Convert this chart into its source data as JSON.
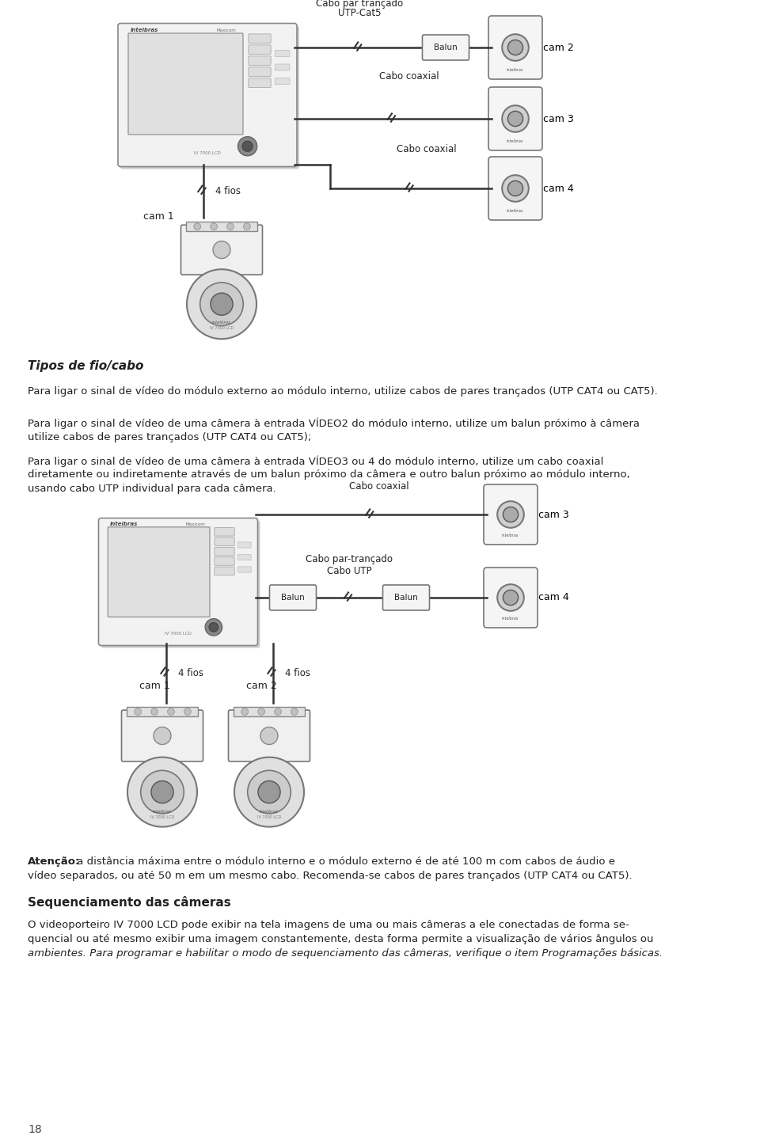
{
  "bg_color": "#ffffff",
  "title_italic": "Tipos de fio/cabo",
  "para1": "Para ligar o sinal de vídeo do módulo externo ao módulo interno, utilize cabos de pares trançados (UTP CAT4 ou CAT5).",
  "para2a": "Para ligar o sinal de vídeo de uma câmera à entrada VÍDEO2 do módulo interno, utilize um balun próximo à câmera",
  "para2b": "utilize cabos de pares trançados (UTP CAT4 ou CAT5);",
  "para3a": "Para ligar o sinal de vídeo de uma câmera à entrada VÍDEO3 ou 4 do módulo interno, utilize um cabo coaxial",
  "para3b": "diretamente ou indiretamente através de um balun próximo da câmera e outro balun próximo ao módulo interno,",
  "para3c": "usando cabo UTP individual para cada câmera.",
  "atencao_bold": "Atenção:",
  "atencao_rest": " a distância máxima entre o módulo interno e o módulo externo é de até 100 m com cabos de áudio e",
  "atencao_line2": "vídeo separados, ou até 50 m em um mesmo cabo. Recomenda-se cabos de pares trançados (UTP CAT4 ou CAT5).",
  "seq_title": "Sequenciamento das câmeras",
  "seq_para1": "O videoporteiro IV 7000 LCD pode exibir na tela imagens de uma ou mais câmeras a ele conectadas de forma se-",
  "seq_para2": "quencial ou até mesmo exibir uma imagem constantemente, desta forma permite a visualização de vários ângulos ou",
  "seq_para3": "ambientes. Para programar e habilitar o modo de sequenciamento das câmeras, verifique o item Programações básicas.",
  "page_num": "18",
  "d1_cable1": "Cabo par trançado",
  "d1_cable1b": "UTP-Cat5",
  "d1_cable2": "Cabo coaxial",
  "d1_cable3": "Cabo coaxial",
  "d1_fios": "4 fios",
  "d1_cam1": "cam 1",
  "d1_cam2": "cam 2",
  "d1_cam3": "cam 3",
  "d1_cam4": "cam 4",
  "d1_balun": "Balun",
  "d2_cable1": "Cabo coaxial",
  "d2_cable2": "Cabo par-trançado",
  "d2_cable2b": "Cabo UTP",
  "d2_fios1": "4 fios",
  "d2_fios2": "4 fios",
  "d2_cam1": "cam 1",
  "d2_cam2": "cam 2",
  "d2_cam3": "cam 3",
  "d2_cam4": "cam 4",
  "d2_balun1": "Balun",
  "d2_balun2": "Balun"
}
